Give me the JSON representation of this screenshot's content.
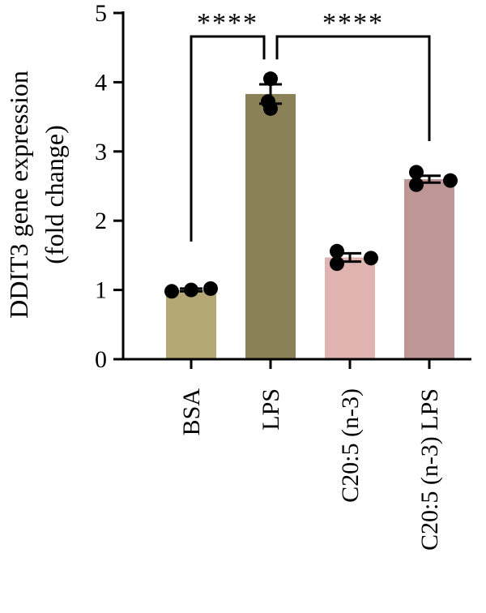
{
  "chart_data": {
    "type": "bar",
    "ylabel_line1": "DDIT3 gene expression",
    "ylabel_line2": "(fold change)",
    "categories": [
      "BSA",
      "LPS",
      "C20:5 (n-3)",
      "C20:5 (n-3) LPS"
    ],
    "values": [
      1.0,
      3.83,
      1.47,
      2.6
    ],
    "errors": [
      0.02,
      0.14,
      0.06,
      0.05
    ],
    "points": [
      [
        0.98,
        1.0,
        1.02
      ],
      [
        4.05,
        3.72,
        3.62
      ],
      [
        1.56,
        1.38,
        1.46
      ],
      [
        2.7,
        2.52,
        2.58
      ]
    ],
    "colors": [
      "#b5a877",
      "#8b8159",
      "#deb3b0",
      "#bd9695"
    ],
    "ylim": [
      0,
      5
    ],
    "yticks": [
      0,
      1,
      2,
      3,
      4,
      5
    ],
    "significance": [
      {
        "from": 0,
        "to": 1,
        "label": "****"
      },
      {
        "from": 1,
        "to": 3,
        "label": "****"
      }
    ]
  }
}
